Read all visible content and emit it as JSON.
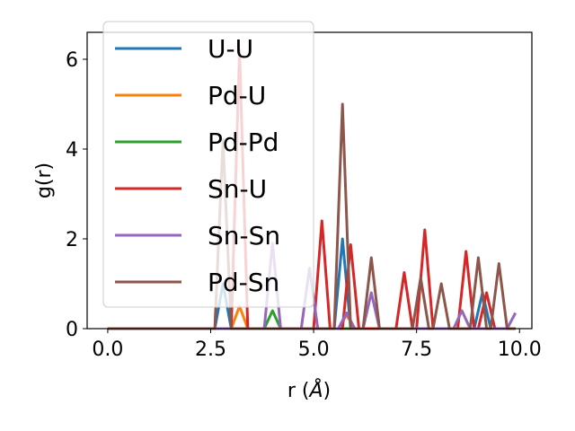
{
  "chart_data": {
    "type": "line",
    "xlabel": "r ($\\AA$)",
    "xlabel_text": "r (",
    "xlabel_unit": "Å",
    "xlabel_close": ")",
    "ylabel": "g(r)",
    "xlim": [
      -0.5,
      10.3
    ],
    "ylim": [
      0,
      6.6
    ],
    "xticks": [
      0.0,
      2.5,
      5.0,
      7.5,
      10.0
    ],
    "xtick_labels": [
      "0.0",
      "2.5",
      "5.0",
      "7.5",
      "10.0"
    ],
    "yticks": [
      0,
      2,
      4,
      6
    ],
    "ytick_labels": [
      "0",
      "2",
      "4",
      "6"
    ],
    "grid": false,
    "legend_position": "upper-left",
    "series": [
      {
        "name": "U-U",
        "color": "#1f77b4",
        "x": [
          0,
          2.6,
          2.8,
          3.0,
          5.5,
          5.7,
          5.9,
          8.9,
          9.1,
          9.3,
          9.9
        ],
        "y": [
          0,
          0,
          1.0,
          0,
          0,
          2.0,
          0,
          0,
          0.8,
          0,
          0
        ]
      },
      {
        "name": "Pd-U",
        "color": "#ff7f0e",
        "x": [
          0,
          3.0,
          3.2,
          3.4,
          5.6,
          5.8,
          6.0,
          9.9
        ],
        "y": [
          0,
          0,
          0.5,
          0,
          0,
          0.3,
          0,
          0
        ]
      },
      {
        "name": "Pd-Pd",
        "color": "#2ca02c",
        "x": [
          0,
          3.8,
          4.0,
          4.2,
          9.9
        ],
        "y": [
          0,
          0,
          0.4,
          0,
          0
        ]
      },
      {
        "name": "Sn-U",
        "color": "#d62728",
        "x": [
          0,
          3.0,
          3.2,
          3.4,
          5.0,
          5.2,
          5.4,
          5.7,
          5.9,
          6.1,
          7.0,
          7.2,
          7.4,
          7.5,
          7.7,
          7.9,
          8.5,
          8.7,
          8.9,
          9.0,
          9.2,
          9.4,
          9.9
        ],
        "y": [
          0,
          0,
          6.2,
          0,
          0,
          2.4,
          0,
          0,
          1.87,
          0,
          0,
          1.25,
          0,
          0,
          2.2,
          0,
          0,
          1.72,
          0,
          0,
          0.8,
          0,
          0
        ]
      },
      {
        "name": "Sn-Sn",
        "color": "#9467bd",
        "x": [
          0,
          3.8,
          4.0,
          4.2,
          4.7,
          4.9,
          5.1,
          5.6,
          5.8,
          6.0,
          6.2,
          6.4,
          6.6,
          8.4,
          8.6,
          8.8,
          9.7,
          9.9
        ],
        "y": [
          0,
          0,
          1.9,
          0,
          0,
          1.35,
          0,
          0,
          0.35,
          0,
          0,
          0.8,
          0,
          0,
          0.4,
          0,
          0,
          0.35
        ]
      },
      {
        "name": "Pd-Sn",
        "color": "#8c564b",
        "x": [
          0,
          2.6,
          2.8,
          3.0,
          5.5,
          5.7,
          5.9,
          6.2,
          6.4,
          6.6,
          7.4,
          7.6,
          7.8,
          7.9,
          8.1,
          8.3,
          8.8,
          9.0,
          9.2,
          9.3,
          9.5,
          9.7,
          9.9
        ],
        "y": [
          0,
          0,
          4.2,
          0,
          0,
          5.0,
          0,
          0,
          1.58,
          0,
          0,
          1.13,
          0,
          0,
          1.0,
          0,
          0,
          1.58,
          0,
          0,
          1.45,
          0,
          0
        ]
      }
    ]
  }
}
